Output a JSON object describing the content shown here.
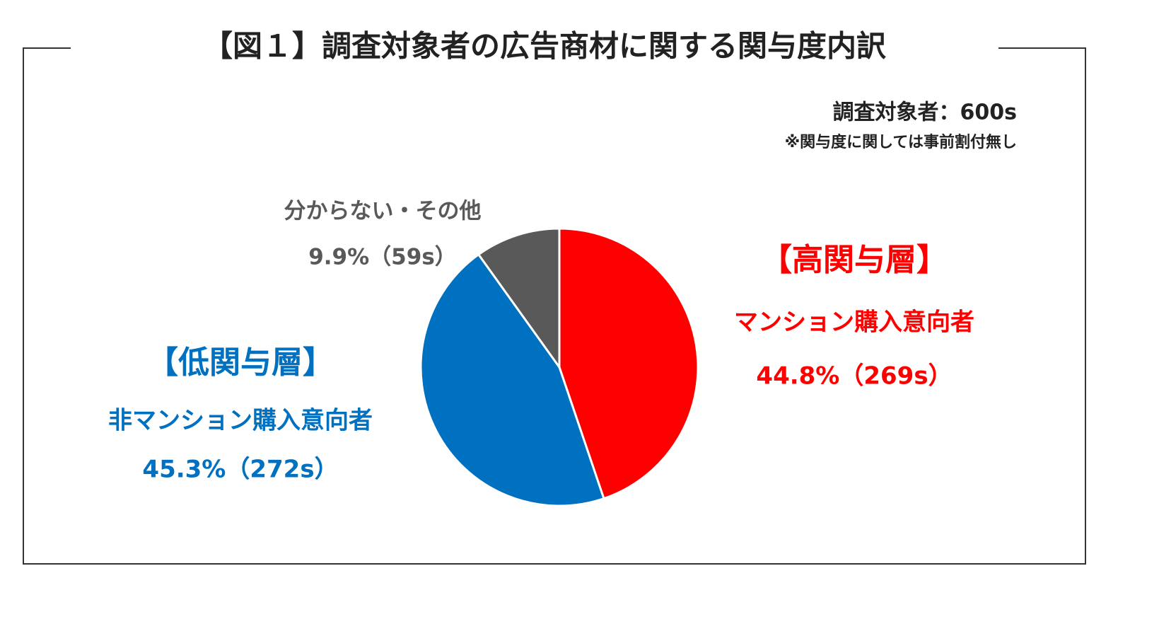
{
  "chart_data": {
    "type": "pie",
    "title": "【図１】調査対象者の広告商材に関する関与度内訳",
    "subtitle": "調査対象者：600s",
    "note": "※関与度に関しては事前割付無し",
    "categories": [
      "マンション購入意向者",
      "非マンション購入意向者",
      "分からない・その他"
    ],
    "groups": [
      "【高関与層】",
      "【低関与層】",
      null
    ],
    "values": [
      44.8,
      45.3,
      9.9
    ],
    "value_labels": [
      "44.8%（269s）",
      "45.3%（272s）",
      "9.9%（59s）"
    ],
    "colors": [
      "#ff0000",
      "#0070c0",
      "#595959"
    ]
  }
}
